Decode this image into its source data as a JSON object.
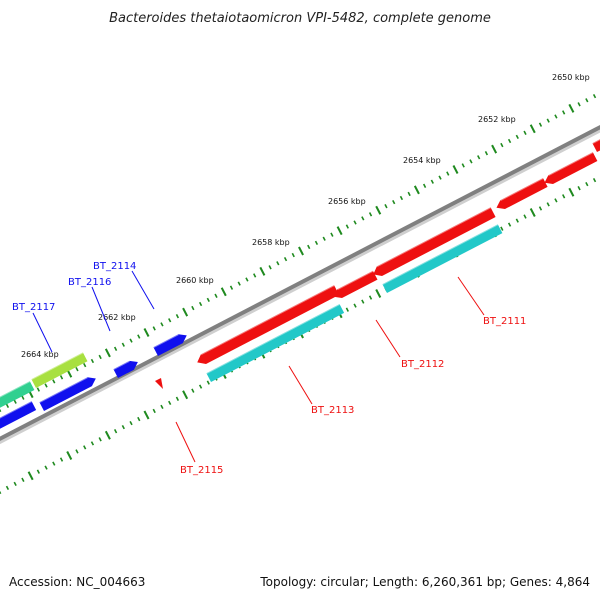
{
  "title": "Bacteroides thetaiotaomicron VPI-5482, complete genome",
  "footer": {
    "accession": "Accession: NC_004663",
    "topology": "Topology: circular; Length: 6,260,361 bp; Genes: 4,864"
  },
  "colors": {
    "backbone": "#808080",
    "tick": "#1f8a1f",
    "forward_gene": "#1010ee",
    "reverse_gene": "#ee1010",
    "reverse_cds_band": "#22c8c8",
    "forward_cds_band": "#30d090",
    "lime_band": "#a8e040"
  },
  "ticks": [
    {
      "label": "2650 kbp"
    },
    {
      "label": "2652 kbp"
    },
    {
      "label": "2654 kbp"
    },
    {
      "label": "2656 kbp"
    },
    {
      "label": "2658 kbp"
    },
    {
      "label": "2660 kbp"
    },
    {
      "label": "2662 kbp"
    },
    {
      "label": "2664 kbp"
    }
  ],
  "gene_labels": [
    {
      "text": "BT_2117",
      "strand": "forward"
    },
    {
      "text": "BT_2116",
      "strand": "forward"
    },
    {
      "text": "BT_2114",
      "strand": "forward"
    },
    {
      "text": "BT_2111",
      "strand": "reverse"
    },
    {
      "text": "BT_2112",
      "strand": "reverse"
    },
    {
      "text": "BT_2113",
      "strand": "reverse"
    },
    {
      "text": "BT_2115",
      "strand": "reverse"
    }
  ]
}
